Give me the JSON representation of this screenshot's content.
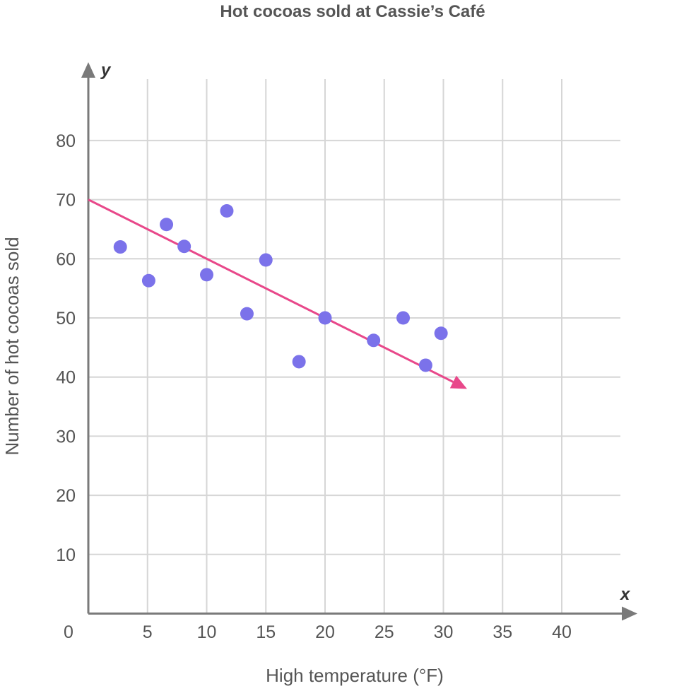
{
  "chart_data": {
    "type": "scatter",
    "title": "Hot cocoas sold at Cassie’s Café",
    "xlabel": "High temperature (°F)",
    "ylabel": "Number of hot cocoas sold",
    "x_axis_var": "x",
    "y_axis_var": "y",
    "origin_label": "0",
    "xlim": [
      0,
      45
    ],
    "ylim": [
      0,
      90
    ],
    "x_ticks": [
      5,
      10,
      15,
      20,
      25,
      30,
      35,
      40
    ],
    "y_ticks": [
      10,
      20,
      30,
      40,
      50,
      60,
      70,
      80
    ],
    "grid": true,
    "points": [
      {
        "x": 2.7,
        "y": 62
      },
      {
        "x": 5.1,
        "y": 56.3
      },
      {
        "x": 6.6,
        "y": 65.8
      },
      {
        "x": 8.1,
        "y": 62.1
      },
      {
        "x": 10.0,
        "y": 57.3
      },
      {
        "x": 11.7,
        "y": 68.1
      },
      {
        "x": 13.4,
        "y": 50.7
      },
      {
        "x": 15.0,
        "y": 59.8
      },
      {
        "x": 17.8,
        "y": 42.6
      },
      {
        "x": 20.0,
        "y": 50
      },
      {
        "x": 24.1,
        "y": 46.2
      },
      {
        "x": 26.6,
        "y": 50
      },
      {
        "x": 28.5,
        "y": 42
      },
      {
        "x": 29.8,
        "y": 47.4
      }
    ],
    "trend_line": {
      "x_start": 0,
      "y_start": 70,
      "x_end": 32,
      "y_end": 38
    },
    "colors": {
      "points": "#7b72ea",
      "trend_line": "#e8488a",
      "grid": "#d6d6d6",
      "axis": "#7a7a7a",
      "text": "#555555"
    }
  }
}
